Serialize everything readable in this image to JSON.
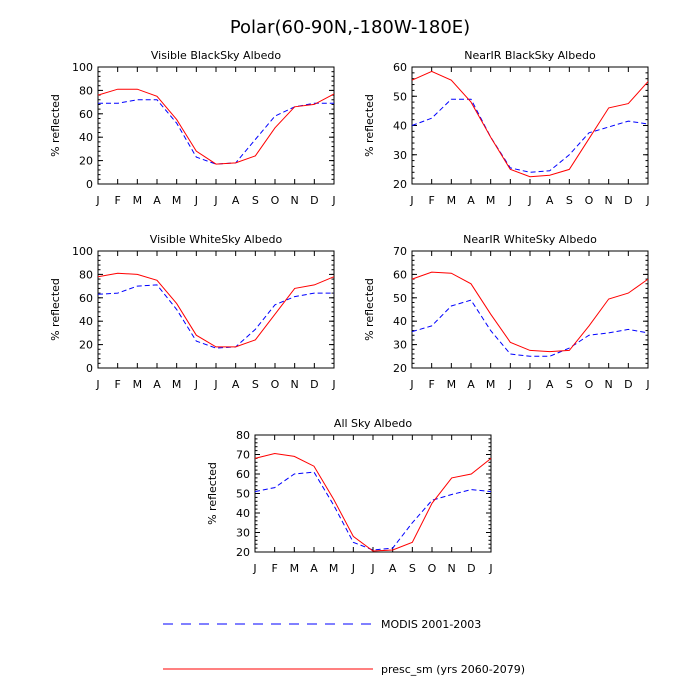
{
  "figure": {
    "title": "Polar(60-90N,-180W-180E)"
  },
  "colors": {
    "modis": "#0000ff",
    "model": "#ff0000"
  },
  "legend": {
    "modis_label": "MODIS 2001-2003",
    "model_label": "presc_sm (yrs 2060-2079)"
  },
  "chart_data": [
    {
      "type": "line",
      "title": "Visible BlackSky Albedo",
      "ylabel": "% reflected",
      "ylim": [
        0,
        100
      ],
      "yticks": [
        0,
        20,
        40,
        60,
        80,
        100
      ],
      "categories": [
        "J",
        "F",
        "M",
        "A",
        "M",
        "J",
        "J",
        "A",
        "S",
        "O",
        "N",
        "D",
        "J"
      ],
      "series": [
        {
          "name": "MODIS 2001-2003",
          "values": [
            69,
            69,
            72,
            72,
            52,
            23,
            17,
            18,
            38,
            58,
            66,
            69,
            69
          ]
        },
        {
          "name": "presc_sm (yrs 2060-2079)",
          "values": [
            76,
            81,
            81,
            75,
            55,
            28,
            17,
            18,
            24,
            48,
            66,
            68,
            77
          ]
        }
      ]
    },
    {
      "type": "line",
      "title": "NearIR BlackSky Albedo",
      "ylabel": "% reflected",
      "ylim": [
        20,
        60
      ],
      "yticks": [
        20,
        30,
        40,
        50,
        60
      ],
      "categories": [
        "J",
        "F",
        "M",
        "A",
        "M",
        "J",
        "J",
        "A",
        "S",
        "O",
        "N",
        "D",
        "J"
      ],
      "series": [
        {
          "name": "MODIS 2001-2003",
          "values": [
            40,
            42.5,
            49,
            49,
            36,
            25.5,
            24,
            24.5,
            30,
            37.5,
            39.5,
            41.5,
            40.5
          ]
        },
        {
          "name": "presc_sm (yrs 2060-2079)",
          "values": [
            55.5,
            58.5,
            55.5,
            48,
            36,
            25,
            22.5,
            23,
            25,
            35.5,
            46,
            47.5,
            55
          ]
        }
      ]
    },
    {
      "type": "line",
      "title": "Visible WhiteSky Albedo",
      "ylabel": "% reflected",
      "ylim": [
        0,
        100
      ],
      "yticks": [
        0,
        20,
        40,
        60,
        80,
        100
      ],
      "categories": [
        "J",
        "F",
        "M",
        "A",
        "M",
        "J",
        "J",
        "A",
        "S",
        "O",
        "N",
        "D",
        "J"
      ],
      "series": [
        {
          "name": "MODIS 2001-2003",
          "values": [
            63,
            64,
            70,
            71,
            50,
            23,
            17,
            18,
            33,
            54,
            61,
            64,
            64
          ]
        },
        {
          "name": "presc_sm (yrs 2060-2079)",
          "values": [
            78,
            81,
            80,
            75,
            55,
            28,
            18,
            18,
            24,
            46,
            68,
            71,
            78
          ]
        }
      ]
    },
    {
      "type": "line",
      "title": "NearIR WhiteSky Albedo",
      "ylabel": "% reflected",
      "ylim": [
        20,
        70
      ],
      "yticks": [
        20,
        30,
        40,
        50,
        60,
        70
      ],
      "categories": [
        "J",
        "F",
        "M",
        "A",
        "M",
        "J",
        "J",
        "A",
        "S",
        "O",
        "N",
        "D",
        "J"
      ],
      "series": [
        {
          "name": "MODIS 2001-2003",
          "values": [
            35.5,
            38,
            46.5,
            49,
            36,
            26,
            25,
            25,
            28.5,
            34,
            35,
            36.5,
            35
          ]
        },
        {
          "name": "presc_sm (yrs 2060-2079)",
          "values": [
            58,
            61,
            60.5,
            56,
            43,
            31,
            27.5,
            27,
            27.5,
            38,
            49.5,
            52,
            58
          ]
        }
      ]
    },
    {
      "type": "line",
      "title": "All Sky Albedo",
      "ylabel": "% reflected",
      "ylim": [
        20,
        80
      ],
      "yticks": [
        20,
        30,
        40,
        50,
        60,
        70,
        80
      ],
      "categories": [
        "J",
        "F",
        "M",
        "A",
        "M",
        "J",
        "J",
        "A",
        "S",
        "O",
        "N",
        "D",
        "J"
      ],
      "series": [
        {
          "name": "MODIS 2001-2003",
          "values": [
            51,
            53,
            60,
            61,
            44,
            25,
            21,
            22,
            35,
            46.5,
            49.5,
            52,
            51
          ]
        },
        {
          "name": "presc_sm (yrs 2060-2079)",
          "values": [
            68,
            70.5,
            69,
            64,
            47,
            28,
            20.5,
            21,
            25,
            45,
            58,
            60,
            68
          ]
        }
      ]
    }
  ]
}
